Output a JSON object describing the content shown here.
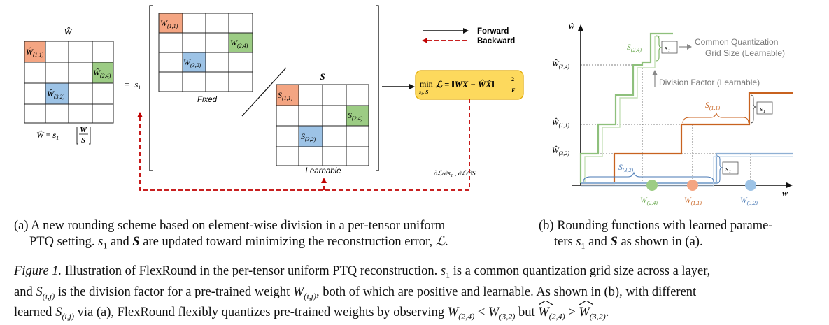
{
  "figure": {
    "panel_a": {
      "what_hat_label": "Ŵ",
      "grid_cells": [
        {
          "label_base": "Ŵ",
          "sub": "(1,1)"
        },
        {
          "label_base": "Ŵ",
          "sub": "(2,4)"
        },
        {
          "label_base": "Ŵ",
          "sub": "(3,2)"
        }
      ],
      "equals": "=",
      "s1": "s",
      "s1_sub": "1",
      "formula_left": "Ŵ = s",
      "formula_sub": "1",
      "formula_num": "W",
      "formula_den": "S",
      "fixed_cells": [
        {
          "base": "W",
          "sub": "(1,1)"
        },
        {
          "base": "W",
          "sub": "(2,4)"
        },
        {
          "base": "W",
          "sub": "(3,2)"
        }
      ],
      "fixed_label": "Fixed",
      "s_matrix_label": "S",
      "learnable_cells": [
        {
          "base": "S",
          "sub": "(1,1)"
        },
        {
          "base": "S",
          "sub": "(2,4)"
        },
        {
          "base": "S",
          "sub": "(3,2)"
        }
      ],
      "learnable_label": "Learnable",
      "legend_forward": "Forward",
      "legend_backward": "Backward",
      "loss_box": {
        "min": "min",
        "min_sub": "s₁, S",
        "loss": "ℒ = ‖WX − ŴX̃‖",
        "sup": "2",
        "sub": "F"
      },
      "grad_label": "∂ℒ/∂s₁ , ∂ℒ/∂S"
    },
    "panel_b": {
      "y_axis": "ŵ",
      "x_axis": "w",
      "y_ticks": [
        {
          "base": "Ŵ",
          "sub": "(2,4)"
        },
        {
          "base": "Ŵ",
          "sub": "(1,1)"
        },
        {
          "base": "Ŵ",
          "sub": "(3,2)"
        }
      ],
      "x_points": [
        {
          "base": "W",
          "sub": "(2,4)"
        },
        {
          "base": "W",
          "sub": "(1,1)"
        },
        {
          "base": "W",
          "sub": "(3,2)"
        }
      ],
      "s24": {
        "base": "S",
        "sub": "(2,4)"
      },
      "s11": {
        "base": "S",
        "sub": "(1,1)"
      },
      "s32": {
        "base": "S",
        "sub": "(3,2)"
      },
      "s1_box": "s₁",
      "common_grid_line1": "Common Quantization",
      "common_grid_line2": "Grid Size (Learnable)",
      "division_factor": "Division Factor (Learnable)",
      "colors": {
        "green": "#8ec07c",
        "orange": "#c8621f",
        "blue": "#8fb0d4"
      }
    },
    "colors": {
      "orange_cell": "#f4a582",
      "green_cell": "#9ccc84",
      "blue_cell": "#9dc3e6",
      "loss_box_fill": "#fdd95d",
      "loss_box_stroke": "#e0a800",
      "backward": "#c00000"
    }
  },
  "captions": {
    "a_prefix": "(a)",
    "a_line1": "A new rounding scheme based on element-wise division in a per-tensor uniform",
    "a_line2_pre": "PTQ setting.",
    "a_s1": "s",
    "a_s1_sub": "1",
    "a_and": "and",
    "a_S": "S",
    "a_line2_post": "are updated toward minimizing the reconstruction error,",
    "a_L": "ℒ",
    "a_end": ".",
    "b_prefix": "(b)",
    "b_line1": "Rounding functions with learned parame-",
    "b_line2_pre": "ters",
    "b_s1": "s",
    "b_s1_sub": "1",
    "b_and": "and",
    "b_S": "S",
    "b_line2_post": "as shown in (a).",
    "main_label": "Figure 1.",
    "main_t1": "Illustration of FlexRound in the per-tensor uniform PTQ reconstruction.",
    "main_s1": "s",
    "main_s1_sub": "1",
    "main_t2": "is a common quantization grid size across a layer,",
    "main_t3": "and",
    "main_S": "S",
    "main_S_sub": "(i,j)",
    "main_t4": "is the division factor for a pre-trained weight",
    "main_W": "W",
    "main_W_sub": "(i,j)",
    "main_t5": ", both of which are positive and learnable. As shown in (b), with different",
    "main_t6": "learned",
    "main_t7": "via (a), FlexRound flexibly quantizes pre-trained weights by observing",
    "main_cmp1_a": "W",
    "main_cmp1_a_sub": "(2,4)",
    "main_lt": "<",
    "main_cmp1_b": "W",
    "main_cmp1_b_sub": "(3,2)",
    "main_but": "but",
    "main_gt": ">",
    "main_end": "."
  }
}
